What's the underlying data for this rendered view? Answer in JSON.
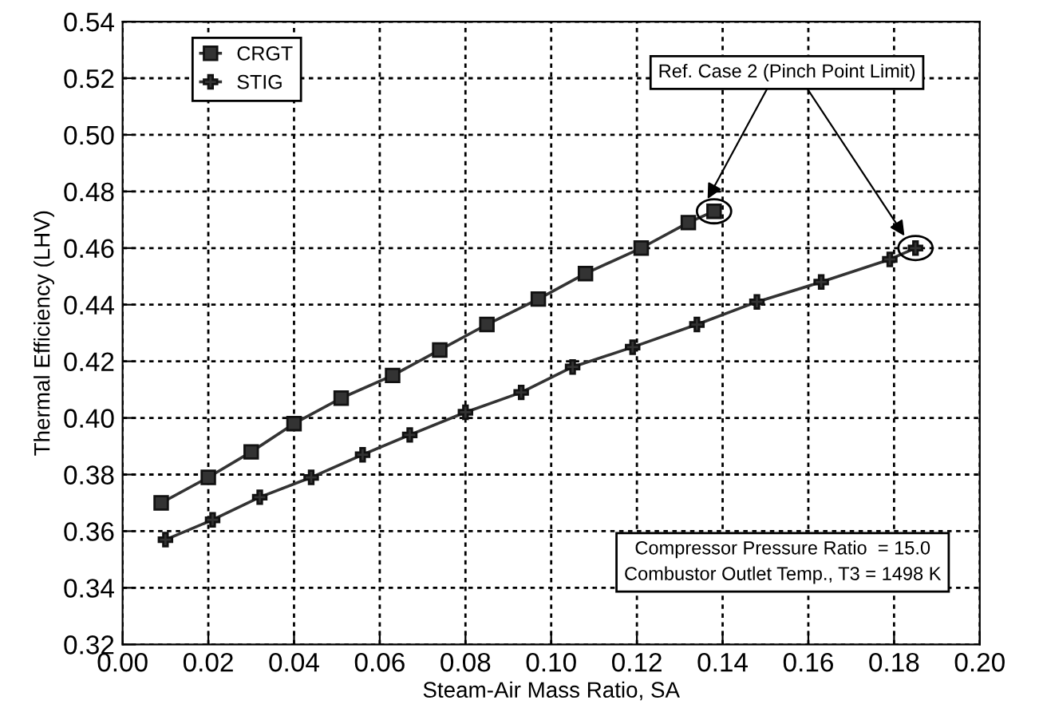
{
  "chart_data": {
    "type": "line",
    "xlabel": "Steam-Air Mass Ratio, SA",
    "ylabel": "Thermal Efficiency (LHV)",
    "xlim": [
      0.0,
      0.2
    ],
    "xticks": [
      {
        "value": 0.0,
        "label": "0.00"
      },
      {
        "value": 0.02,
        "label": "0.02"
      },
      {
        "value": 0.04,
        "label": "0.04"
      },
      {
        "value": 0.06,
        "label": "0.06"
      },
      {
        "value": 0.08,
        "label": "0.08"
      },
      {
        "value": 0.1,
        "label": "0.10"
      },
      {
        "value": 0.12,
        "label": "0.12"
      },
      {
        "value": 0.14,
        "label": "0.14"
      },
      {
        "value": 0.16,
        "label": "0.16"
      },
      {
        "value": 0.18,
        "label": "0.18"
      },
      {
        "value": 0.2,
        "label": "0.20"
      }
    ],
    "ylim": [
      0.32,
      0.54
    ],
    "yticks": [
      0.32,
      0.34,
      0.36,
      0.38,
      {
        "value": 0.4,
        "label": "0.40"
      },
      0.42,
      0.44,
      0.46,
      0.48,
      {
        "value": 0.5,
        "label": "0.50"
      },
      0.52,
      0.54
    ],
    "grid": true,
    "legend": "top left",
    "line_style": "solid",
    "series": [
      {
        "name": "CRGT",
        "color": "#333333",
        "marker": "square",
        "x": [
          0.009,
          0.02,
          0.03,
          0.04,
          0.051,
          0.063,
          0.074,
          0.085,
          0.097,
          0.108,
          0.121,
          0.132,
          0.138
        ],
        "values": [
          0.37,
          0.379,
          0.388,
          0.398,
          0.407,
          0.415,
          0.424,
          0.433,
          0.442,
          0.451,
          0.46,
          0.469,
          0.473
        ]
      },
      {
        "name": "STIG",
        "color": "#333333",
        "marker": "cross",
        "x": [
          0.01,
          0.021,
          0.032,
          0.044,
          0.056,
          0.067,
          0.08,
          0.093,
          0.105,
          0.119,
          0.134,
          0.148,
          0.163,
          0.179,
          0.185
        ],
        "values": [
          0.357,
          0.364,
          0.372,
          0.379,
          0.387,
          0.394,
          0.402,
          0.409,
          0.418,
          0.425,
          0.433,
          0.441,
          0.448,
          0.456,
          0.46
        ]
      }
    ],
    "annotations": [
      "Ref. Case 2 (Pinch Point Limit)",
      "Compressor Pressure Ratio  = 15.0\nCombustor Outlet Temp., T3 = 1498 K"
    ]
  }
}
